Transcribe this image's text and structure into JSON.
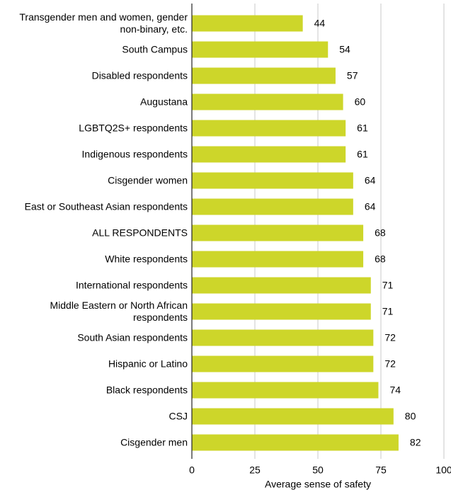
{
  "chart_data": {
    "type": "barh",
    "categories": [
      "Transgender men and women, gender non-binary, etc.",
      "South Campus",
      "Disabled respondents",
      "Augustana",
      "LGBTQ2S+ respondents",
      "Indigenous respondents",
      "Cisgender women",
      "East or Southeast Asian respondents",
      "ALL RESPONDENTS",
      "White respondents",
      "International respondents",
      "Middle Eastern or North African respondents",
      "South Asian respondents",
      "Hispanic or Latino",
      "Black respondents",
      "CSJ",
      "Cisgender men"
    ],
    "values": [
      44,
      54,
      57,
      60,
      61,
      61,
      64,
      64,
      68,
      68,
      71,
      71,
      72,
      72,
      74,
      80,
      82
    ],
    "color": "#cdd62a",
    "xlabel": "Average sense of safety",
    "xlim": [
      0,
      100
    ],
    "xticks": [
      0,
      25,
      50,
      75,
      100
    ],
    "grid": true
  }
}
